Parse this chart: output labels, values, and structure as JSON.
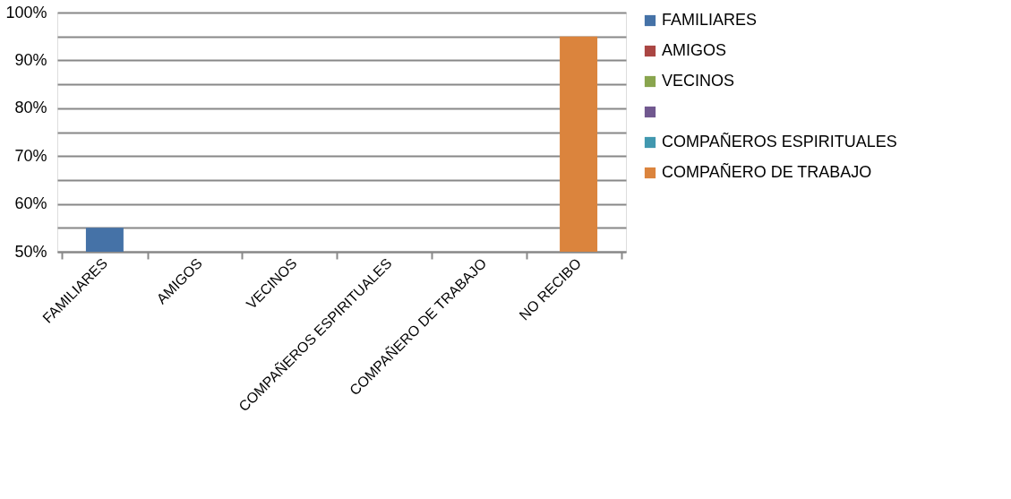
{
  "chart_data": {
    "type": "bar",
    "categories": [
      "FAMILIARES",
      "AMIGOS",
      "VECINOS",
      "COMPAÑEROS ESPIRITUALES",
      "COMPAÑERO DE TRABAJO",
      "NO RECIBO"
    ],
    "series": [
      {
        "name": "FAMILIARES",
        "color": "#4572a7",
        "values": [
          55,
          null,
          null,
          null,
          null,
          null
        ]
      },
      {
        "name": "AMIGOS",
        "color": "#aa4643",
        "values": [
          null,
          null,
          null,
          null,
          null,
          null
        ]
      },
      {
        "name": "VECINOS",
        "color": "#89a54e",
        "values": [
          null,
          null,
          null,
          null,
          null,
          null
        ]
      },
      {
        "color": "#71588f",
        "values": [
          null,
          null,
          null,
          null,
          null,
          null
        ]
      },
      {
        "name": "COMPAÑEROS ESPIRITUALES",
        "color": "#4198af",
        "values": [
          null,
          null,
          null,
          null,
          null,
          null
        ]
      },
      {
        "name": "COMPAÑERO DE TRABAJO",
        "color": "#db843d",
        "values": [
          null,
          null,
          null,
          null,
          null,
          95
        ]
      }
    ],
    "ylim": [
      50,
      100
    ],
    "yticks": [
      {
        "value": 50,
        "label": "50%"
      },
      {
        "value": 55,
        "label": null
      },
      {
        "value": 60,
        "label": "60%"
      },
      {
        "value": 65,
        "label": null
      },
      {
        "value": 70,
        "label": "70%"
      },
      {
        "value": 75,
        "label": null
      },
      {
        "value": 80,
        "label": "80%"
      },
      {
        "value": 85,
        "label": null
      },
      {
        "value": 90,
        "label": "90%"
      },
      {
        "value": 95,
        "label": null
      },
      {
        "value": 100,
        "label": "100%"
      }
    ],
    "grid": "y",
    "legend": "right"
  }
}
